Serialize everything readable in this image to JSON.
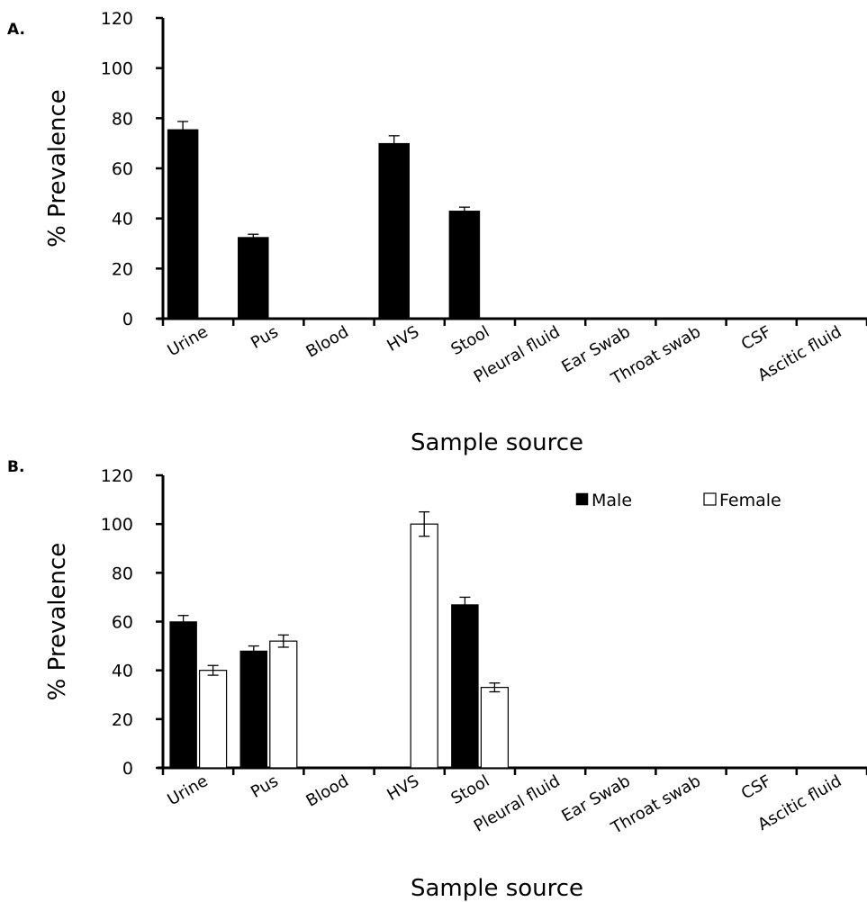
{
  "chart_data": [
    {
      "panel_label": "A.",
      "type": "bar",
      "categories": [
        "Urine",
        "Pus",
        "Blood",
        "HVS",
        "Stool",
        "Pleural fluid",
        "Ear Swab",
        "Throat swab",
        "CSF",
        "Ascitic fluid"
      ],
      "series": [
        {
          "values": [
            75.5,
            32.5,
            0,
            70,
            43,
            0,
            0,
            0,
            0,
            0
          ],
          "errors": [
            3.2,
            1.2,
            0,
            3.0,
            1.5,
            0,
            0,
            0,
            0,
            0
          ],
          "color": "#000000"
        }
      ],
      "xlabel": "Sample source",
      "ylabel": "% Prevalence",
      "ylim": [
        0,
        120
      ],
      "yticks": [
        0,
        20,
        40,
        60,
        80,
        100,
        120
      ],
      "grid": false
    },
    {
      "panel_label": "B.",
      "type": "bar",
      "categories": [
        "Urine",
        "Pus",
        "Blood",
        "HVS",
        "Stool",
        "Pleural fluid",
        "Ear Swab",
        "Throat swab",
        "CSF",
        "Ascitic fluid"
      ],
      "series": [
        {
          "name": "Male",
          "values": [
            60,
            48,
            0,
            0,
            67,
            0,
            0,
            0,
            0,
            0
          ],
          "errors": [
            2.5,
            2.0,
            0,
            0,
            3.0,
            0,
            0,
            0,
            0,
            0
          ],
          "color": "#000000"
        },
        {
          "name": "Female",
          "values": [
            40,
            52,
            0,
            100,
            33,
            0,
            0,
            0,
            0,
            0
          ],
          "errors": [
            2.0,
            2.5,
            0,
            5.0,
            1.8,
            0,
            0,
            0,
            0,
            0
          ],
          "color": "#ffffff"
        }
      ],
      "xlabel": "Sample source",
      "ylabel": "% Prevalence",
      "ylim": [
        0,
        120
      ],
      "yticks": [
        0,
        20,
        40,
        60,
        80,
        100,
        120
      ],
      "legend": "top-right",
      "grid": false
    }
  ]
}
